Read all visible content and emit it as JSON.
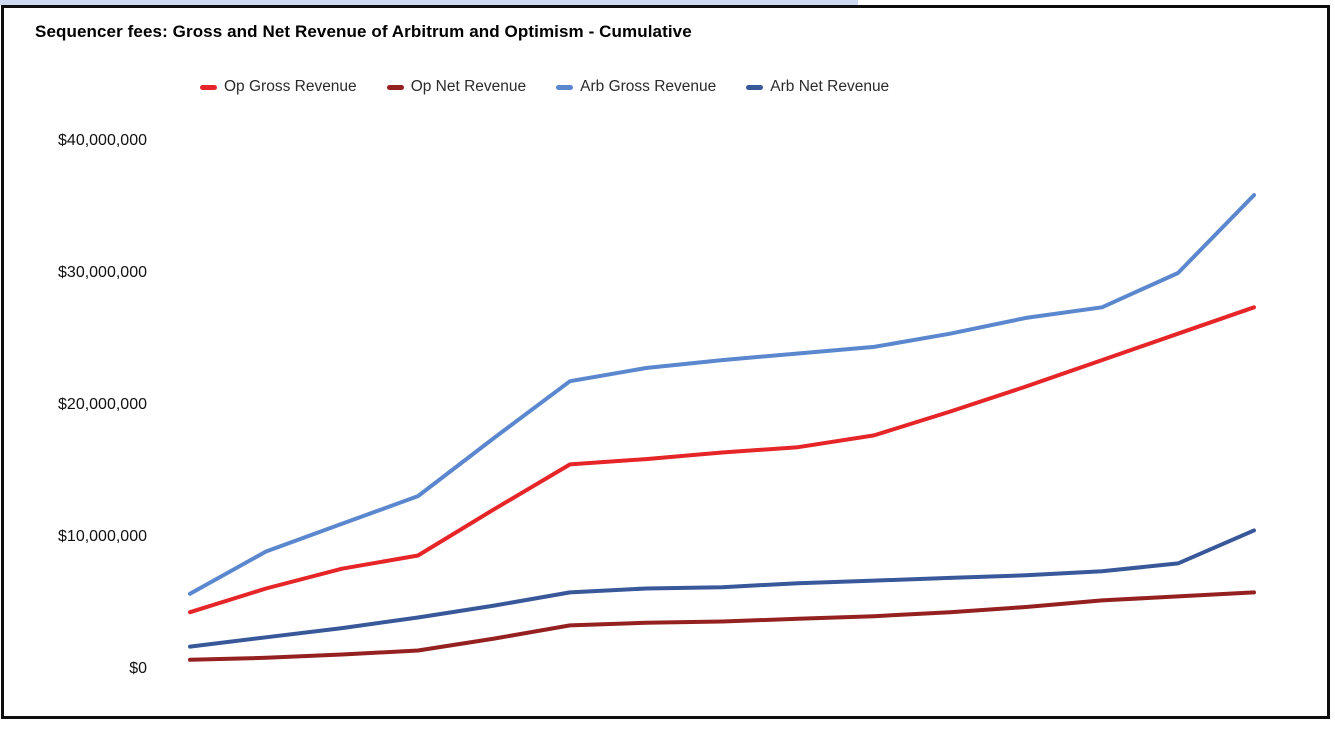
{
  "selection_strip": {
    "color": "#ccd9f1"
  },
  "chart_data": {
    "type": "line",
    "title": "Sequencer fees: Gross and Net Revenue of Arbitrum and Optimism - Cumulative",
    "legend_position": "top",
    "grid": false,
    "x_axis": {
      "labels_visible": false,
      "num_points": 15
    },
    "ylim": [
      0,
      40000000
    ],
    "yticks": [
      "$40,000,000",
      "$30,000,000",
      "$20,000,000",
      "$10,000,000",
      "$0"
    ],
    "series": [
      {
        "name": "Op Gross Revenue",
        "color": "#e52528",
        "values": [
          4300000,
          6100000,
          7600000,
          8600000,
          12100000,
          15500000,
          15900000,
          16400000,
          16800000,
          17700000,
          19500000,
          21400000,
          23400000,
          25400000,
          27400000
        ]
      },
      {
        "name": "Op Net Revenue",
        "color": "#952020",
        "values": [
          700000,
          850000,
          1100000,
          1400000,
          2300000,
          3300000,
          3500000,
          3600000,
          3800000,
          4000000,
          4300000,
          4700000,
          5200000,
          5500000,
          5800000
        ]
      },
      {
        "name": "Arb Gross Revenue",
        "color": "#5b87ce",
        "values": [
          5700000,
          8900000,
          11000000,
          13100000,
          17500000,
          21800000,
          22800000,
          23400000,
          23900000,
          24400000,
          25400000,
          26600000,
          27400000,
          30000000,
          35900000
        ]
      },
      {
        "name": "Arb Net Revenue",
        "color": "#38589a",
        "values": [
          1700000,
          2400000,
          3100000,
          3900000,
          4800000,
          5800000,
          6100000,
          6200000,
          6500000,
          6700000,
          6900000,
          7100000,
          7400000,
          8000000,
          10500000
        ]
      }
    ]
  }
}
